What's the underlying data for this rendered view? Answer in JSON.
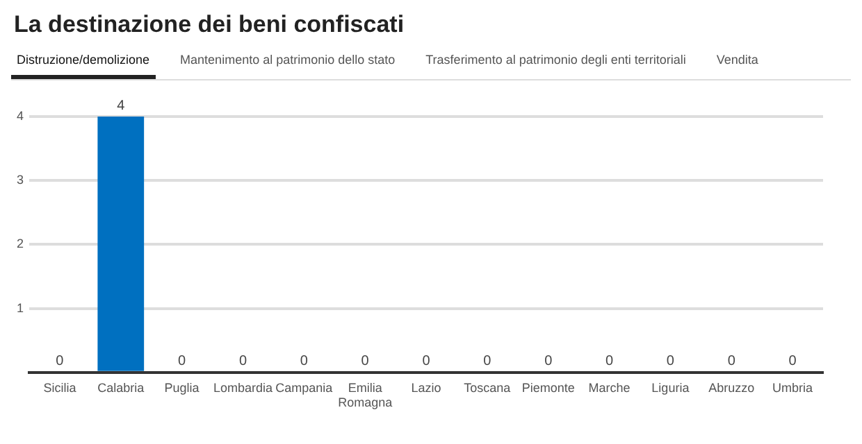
{
  "chart_data": {
    "type": "bar",
    "title": "La destinazione dei beni confiscati",
    "annotations": [
      "Distruzione/demolizione",
      "Mantenimento al patrimonio dello stato",
      "Trasferimento al patrimonio degli enti territoriali",
      "Vendita"
    ],
    "categories": [
      "Sicilia",
      "Calabria",
      "Puglia",
      "Lombardia",
      "Campania",
      "Emilia Romagna",
      "Lazio",
      "Toscana",
      "Piemonte",
      "Marche",
      "Liguria",
      "Abruzzo",
      "Umbria"
    ],
    "values": [
      0,
      4,
      0,
      0,
      0,
      0,
      0,
      0,
      0,
      0,
      0,
      0,
      0
    ],
    "color": "#0070c0",
    "ylim": [
      0,
      4
    ],
    "yticks": [
      {
        "value": 0,
        "label": null
      },
      1,
      2,
      3,
      4
    ],
    "grid": "y",
    "data_labels": true
  }
}
